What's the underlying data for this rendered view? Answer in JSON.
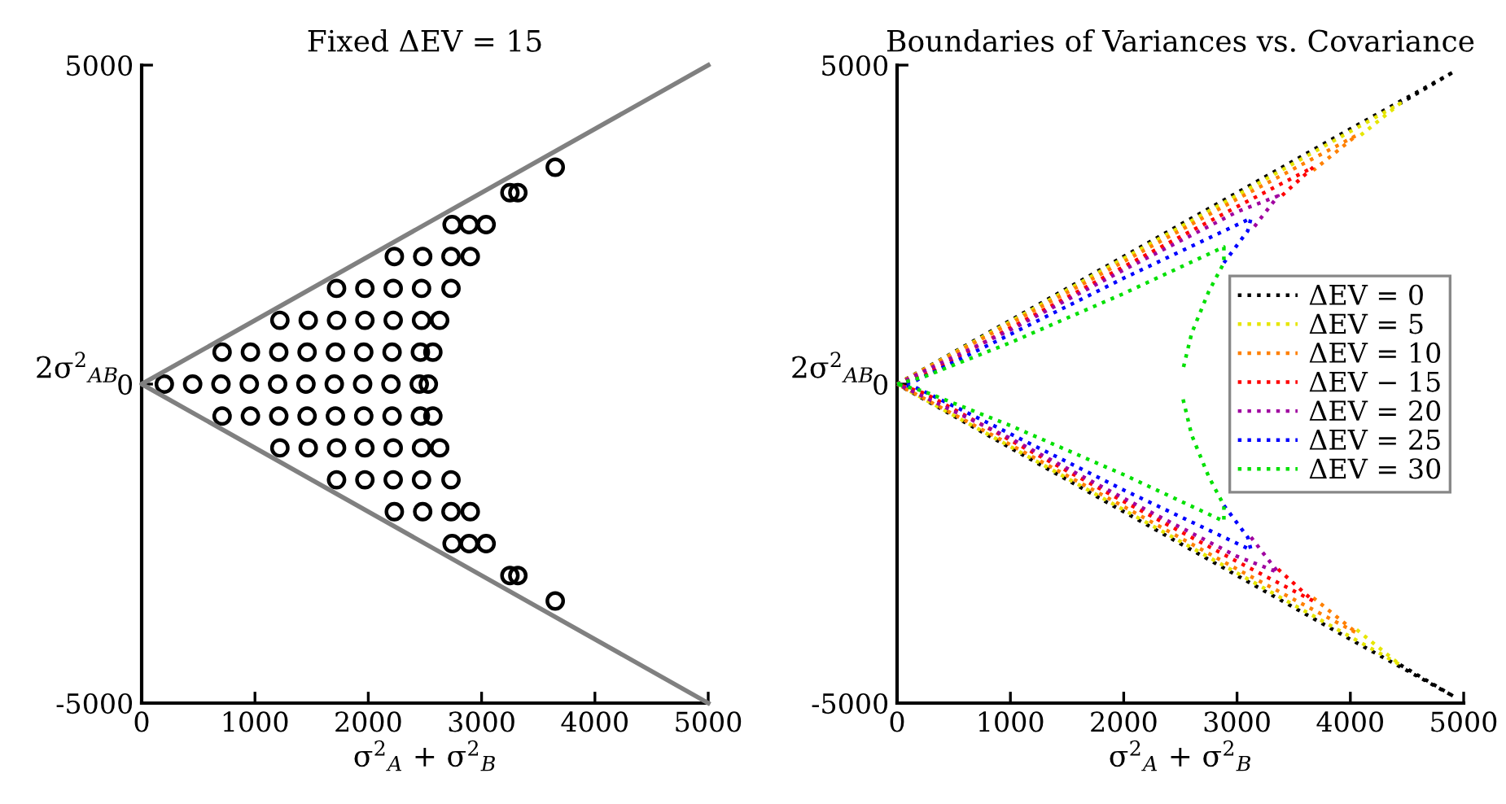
{
  "chart_data": [
    {
      "type": "scatter",
      "title": "Fixed ΔEV = 15",
      "xlabel": "σ$^{2}$$_{A}$ + σ$^{2}$$_{B}$",
      "ylabel": "2σ$^{2}$$_{AB}$",
      "xlim": [
        0,
        5000
      ],
      "ylim": [
        -5000,
        5000
      ],
      "xticks": [
        0,
        1000,
        2000,
        3000,
        4000,
        5000
      ],
      "yticks": [
        {
          "value": -5000,
          "label": "-5000"
        },
        0,
        5000
      ],
      "grid": false,
      "legend": false,
      "marker": "circle",
      "series": [
        {
          "type": "scatter",
          "color": "#000000",
          "x": [
            200,
            450,
            700,
            950,
            1200,
            1450,
            1700,
            1950,
            2200,
            2450,
            2530,
            710,
            960,
            1210,
            1460,
            1710,
            1960,
            2210,
            2460,
            2570,
            710,
            960,
            1210,
            1460,
            1710,
            1960,
            2210,
            2460,
            2570,
            1220,
            1470,
            1720,
            1970,
            2220,
            2470,
            2630,
            1220,
            1470,
            1720,
            1970,
            2220,
            2470,
            2630,
            1720,
            1970,
            2220,
            2470,
            2730,
            1720,
            1970,
            2220,
            2470,
            2730,
            2230,
            2480,
            2730,
            2900,
            2230,
            2480,
            2730,
            2900,
            2740,
            2890,
            3040,
            2740,
            2890,
            3040,
            3250,
            3320,
            3250,
            3320,
            3650,
            3650
          ],
          "values": [
            0,
            0,
            0,
            0,
            0,
            0,
            0,
            0,
            0,
            0,
            0,
            500,
            500,
            500,
            500,
            500,
            500,
            500,
            500,
            500,
            -500,
            -500,
            -500,
            -500,
            -500,
            -500,
            -500,
            -500,
            -500,
            1000,
            1000,
            1000,
            1000,
            1000,
            1000,
            1000,
            -1000,
            -1000,
            -1000,
            -1000,
            -1000,
            -1000,
            -1000,
            1500,
            1500,
            1500,
            1500,
            1500,
            -1500,
            -1500,
            -1500,
            -1500,
            -1500,
            2000,
            2000,
            2000,
            2000,
            -2000,
            -2000,
            -2000,
            -2000,
            2500,
            2500,
            2500,
            -2500,
            -2500,
            -2500,
            3000,
            3000,
            -3000,
            -3000,
            3400,
            -3400
          ]
        },
        {
          "type": "line",
          "color": "#808080",
          "line_style": "solid",
          "marker": "none",
          "x": [
            5000,
            0,
            5000
          ],
          "values": [
            5000,
            0,
            -5000
          ]
        }
      ]
    },
    {
      "type": "line",
      "title": "Boundaries of Variances vs. Covariance",
      "xlabel": "σ$^{2}$$_{A}$ + σ$^{2}$$_{B}$",
      "ylabel": "2σ$^{2}$$_{AB}$",
      "xlim": [
        0,
        5000
      ],
      "ylim": [
        -5000,
        5000
      ],
      "xticks": [
        0,
        1000,
        2000,
        3000,
        4000,
        5000
      ],
      "yticks": [
        {
          "value": -5000,
          "label": "-5000"
        },
        0,
        5000
      ],
      "grid": false,
      "legend": "right",
      "line_style": "dotted",
      "marker": "none",
      "series": [
        {
          "name": "ΔEV = 0",
          "color": "#000000",
          "x": [
            0,
            1000,
            2000,
            3000,
            4000,
            4918,
            4440,
            null,
            4440,
            4918,
            4000,
            3000,
            2000,
            1000,
            0
          ],
          "values": [
            0,
            1000,
            2000,
            3000,
            4000,
            4900,
            4400,
            null,
            -4400,
            -4900,
            -4000,
            -3000,
            -2000,
            -1000,
            0
          ]
        },
        {
          "name": "ΔEV = 5",
          "color": "#e6e600",
          "x": [
            0,
            1000,
            2000,
            3000,
            4000,
            4440,
            4056,
            null,
            4056,
            4440,
            4000,
            3000,
            2000,
            1000,
            0
          ],
          "values": [
            0,
            980,
            1970,
            2960,
            3960,
            4400,
            3850,
            null,
            -3850,
            -4400,
            -3960,
            -2960,
            -1970,
            -980,
            0
          ]
        },
        {
          "name": "ΔEV = 10",
          "color": "#ff8000",
          "x": [
            0,
            1000,
            2000,
            3000,
            4056,
            3673,
            null,
            3673,
            4056,
            3000,
            2000,
            1000,
            0
          ],
          "values": [
            0,
            950,
            1920,
            2900,
            3900,
            3350,
            null,
            -3350,
            -3900,
            -2900,
            -1920,
            -950,
            0
          ]
        },
        {
          "name": "ΔEV − 15",
          "color": "#ff0000",
          "x": [
            0,
            250,
            1000,
            2000,
            3000,
            3673,
            3362,
            null,
            3362,
            3673,
            3000,
            2000,
            1000,
            250,
            0
          ],
          "values": [
            0,
            150,
            880,
            1840,
            2780,
            3400,
            2900,
            null,
            -2900,
            -3400,
            -2780,
            -1840,
            -880,
            -150,
            0
          ]
        },
        {
          "name": "ΔEV = 20",
          "color": "#a000a0",
          "x": [
            0,
            1000,
            2000,
            3000,
            3362,
            3123,
            null,
            3123,
            3362,
            3000,
            2000,
            1000,
            0
          ],
          "values": [
            0,
            850,
            1790,
            2700,
            2950,
            2400,
            null,
            -2400,
            -2950,
            -2700,
            -1790,
            -850,
            0
          ]
        },
        {
          "name": "ΔEV = 25",
          "color": "#0000ff",
          "x": [
            0,
            150,
            1000,
            2000,
            3123,
            3094,
            2884,
            null,
            2884,
            3094,
            3123,
            2000,
            1000,
            150,
            0
          ],
          "values": [
            0,
            40,
            780,
            1660,
            2600,
            2400,
            1900,
            null,
            -1900,
            -2400,
            -2600,
            -1660,
            -780,
            -40,
            0
          ]
        },
        {
          "name": "ΔEV = 30",
          "color": "#00e000",
          "x": [
            0,
            230,
            1000,
            2000,
            2884,
            2884,
            2750,
            2600,
            2524,
            null,
            2524,
            2600,
            2750,
            2884,
            2884,
            2000,
            1000,
            230,
            0
          ],
          "values": [
            0,
            110,
            650,
            1420,
            2150,
            1900,
            1450,
            800,
            240,
            null,
            -240,
            -800,
            -1450,
            -1900,
            -2150,
            -1420,
            -650,
            -110,
            0
          ]
        }
      ]
    }
  ]
}
